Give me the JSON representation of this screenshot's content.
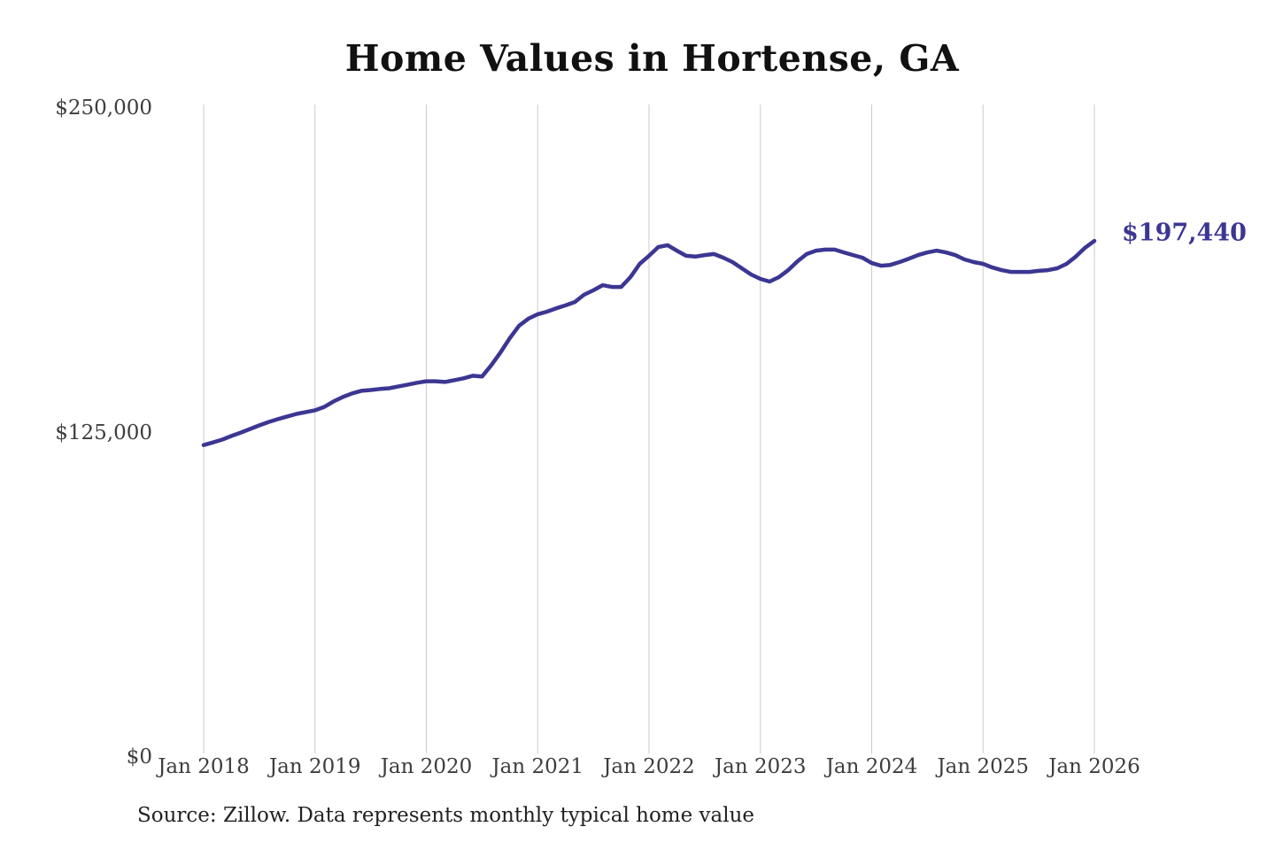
{
  "chart": {
    "title": "Home Values in Hortense, GA",
    "end_label": "$197,440",
    "source": "Source: Zillow. Data represents monthly typical home value",
    "colors": {
      "line": "#3c3693",
      "end_label_text": "#3c3693",
      "gridline": "#cbcbcb",
      "axis_text": "#3d3d3d",
      "title_text": "#111111",
      "source_text": "#222222",
      "background": "#ffffff"
    }
  },
  "chart_data": {
    "type": "line",
    "title": "Home Values in Hortense, GA",
    "ylabel": "",
    "xlabel": "",
    "ylim": [
      0,
      250000
    ],
    "grid": "vertical-only",
    "legend": "none",
    "line_color": "#3c3693",
    "end_annotation": "$197,440",
    "source": "Source: Zillow. Data represents monthly typical home value",
    "x_tick_labels": [
      "Jan 2018",
      "Jan 2019",
      "Jan 2020",
      "Jan 2021",
      "Jan 2022",
      "Jan 2023",
      "Jan 2024",
      "Jan 2025",
      "Jan 2026"
    ],
    "y_ticks": [
      {
        "label": "$250,000",
        "value": 250000
      },
      {
        "label": "$125,000",
        "value": 125000
      },
      {
        "label": "$0",
        "value": 0
      }
    ],
    "x": [
      "2018-01",
      "2018-02",
      "2018-03",
      "2018-04",
      "2018-05",
      "2018-06",
      "2018-07",
      "2018-08",
      "2018-09",
      "2018-10",
      "2018-11",
      "2018-12",
      "2019-01",
      "2019-02",
      "2019-03",
      "2019-04",
      "2019-05",
      "2019-06",
      "2019-07",
      "2019-08",
      "2019-09",
      "2019-10",
      "2019-11",
      "2019-12",
      "2020-01",
      "2020-02",
      "2020-03",
      "2020-04",
      "2020-05",
      "2020-06",
      "2020-07",
      "2020-08",
      "2020-09",
      "2020-10",
      "2020-11",
      "2020-12",
      "2021-01",
      "2021-02",
      "2021-03",
      "2021-04",
      "2021-05",
      "2021-06",
      "2021-07",
      "2021-08",
      "2021-09",
      "2021-10",
      "2021-11",
      "2021-12",
      "2022-01",
      "2022-02",
      "2022-03",
      "2022-04",
      "2022-05",
      "2022-06",
      "2022-07",
      "2022-08",
      "2022-09",
      "2022-10",
      "2022-11",
      "2022-12",
      "2023-01",
      "2023-02",
      "2023-03",
      "2023-04",
      "2023-05",
      "2023-06",
      "2023-07",
      "2023-08",
      "2023-09",
      "2023-10",
      "2023-11",
      "2023-12",
      "2024-01",
      "2024-02",
      "2024-03",
      "2024-04",
      "2024-05",
      "2024-06",
      "2024-07",
      "2024-08",
      "2024-09",
      "2024-10",
      "2024-11",
      "2024-12",
      "2025-01",
      "2025-02",
      "2025-03",
      "2025-04",
      "2025-05",
      "2025-06",
      "2025-07",
      "2025-08",
      "2025-09",
      "2025-10",
      "2025-11",
      "2025-12",
      "2026-01"
    ],
    "values": [
      118800,
      119800,
      120900,
      122300,
      123600,
      125000,
      126400,
      127700,
      128800,
      129800,
      130800,
      131500,
      132200,
      133500,
      135600,
      137300,
      138700,
      139700,
      140000,
      140400,
      140700,
      141400,
      142100,
      142800,
      143400,
      143400,
      143100,
      143800,
      144500,
      145500,
      145200,
      149600,
      154500,
      160000,
      164800,
      167500,
      169200,
      170200,
      171500,
      172600,
      173900,
      176700,
      178400,
      180400,
      179700,
      179700,
      183500,
      188600,
      191700,
      195100,
      195800,
      193700,
      191700,
      191400,
      192000,
      192400,
      191000,
      189300,
      186900,
      184500,
      182800,
      181800,
      183500,
      186200,
      189600,
      192400,
      193700,
      194100,
      194100,
      193000,
      192000,
      191000,
      188900,
      187900,
      188200,
      189300,
      190600,
      192000,
      193000,
      193700,
      193000,
      192000,
      190300,
      189300,
      188600,
      187200,
      186200,
      185500,
      185500,
      185500,
      185900,
      186200,
      186900,
      188600,
      191400,
      194800,
      197440
    ]
  }
}
